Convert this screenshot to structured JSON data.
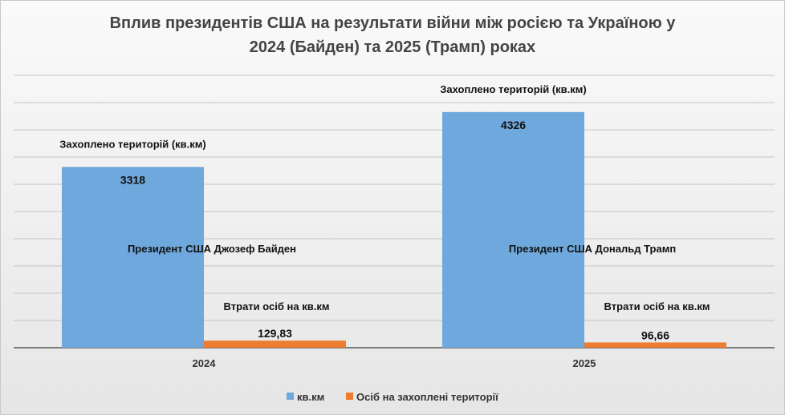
{
  "chart_data": {
    "type": "bar",
    "title_line1": "Вплив президентів США на результати війни між росією та Україною у",
    "title_line2": "2024 (Байден) та 2025 (Трамп) роках",
    "categories": [
      "2024",
      "2025"
    ],
    "series": [
      {
        "name": "кв.км",
        "color": "#6fa8dc",
        "values": [
          3318,
          4326
        ],
        "labels": [
          "3318",
          "4326"
        ]
      },
      {
        "name": "Осіб на захоплені території",
        "color": "#ed7d31",
        "values": [
          129.83,
          96.66
        ],
        "labels": [
          "129,83",
          "96,66"
        ]
      }
    ],
    "annotations": {
      "territory": [
        "Захоплено територій (кв.км)",
        "Захоплено територій (кв.км)"
      ],
      "president": [
        "Президент США Джозеф Байден",
        "Президент США Дональд Трамп"
      ],
      "losses": [
        "Втрати осіб на кв.км",
        "Втрати осіб на кв.км"
      ]
    },
    "ylim": [
      0,
      5000
    ],
    "grid": true,
    "legend_position": "bottom"
  }
}
